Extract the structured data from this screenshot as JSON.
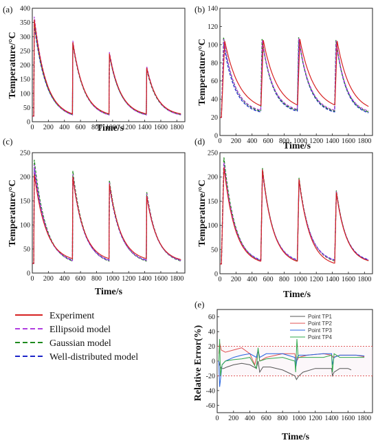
{
  "colors": {
    "Experiment": "#d62020",
    "Ellipsoid model": "#b03ce0",
    "Gaussian model": "#1d8a1d",
    "Well-distributed model": "#1a23c8",
    "Point TP1": "#555555",
    "Point TP2": "#e05050",
    "Point TP3": "#2060e0",
    "Point TP4": "#2ea84a",
    "bound": "#d62020"
  },
  "legend": {
    "position": "bottom-left",
    "entries": [
      {
        "label": "Experiment",
        "style": "solid"
      },
      {
        "label": "Ellipsoid model",
        "style": "dashed"
      },
      {
        "label": "Gaussian model",
        "style": "dashed"
      },
      {
        "label": "Well-distributed model",
        "style": "dashed"
      }
    ]
  },
  "chart_data": [
    {
      "panel": "(a)",
      "type": "line",
      "xlabel": "Time/s",
      "ylabel": "Temperature/°C",
      "xlim": [
        0,
        1900
      ],
      "ylim": [
        0,
        400
      ],
      "xticks": [
        0,
        200,
        400,
        600,
        800,
        1000,
        1200,
        1400,
        1600,
        1800
      ],
      "yticks": [
        0,
        50,
        100,
        150,
        200,
        250,
        300,
        350,
        400
      ],
      "pulse_times": [
        20,
        500,
        955,
        1420
      ],
      "end_time": 1850,
      "base": 20,
      "series": [
        {
          "name": "Experiment",
          "peaks": [
            360,
            280,
            240,
            190
          ],
          "troughs": [
            28,
            28,
            28,
            28
          ],
          "lag": 0
        },
        {
          "name": "Ellipsoid model",
          "peaks": [
            370,
            285,
            245,
            195
          ],
          "troughs": [
            24,
            24,
            24,
            24
          ],
          "lag": 0
        },
        {
          "name": "Gaussian model",
          "peaks": [
            350,
            278,
            238,
            188
          ],
          "troughs": [
            25,
            25,
            25,
            25
          ],
          "lag": 0
        },
        {
          "name": "Well-distributed model",
          "peaks": [
            340,
            275,
            235,
            185
          ],
          "troughs": [
            26,
            26,
            26,
            26
          ],
          "lag": 0
        }
      ]
    },
    {
      "panel": "(b)",
      "type": "line",
      "xlabel": "Time/s",
      "ylabel": "Temperature/°C",
      "xlim": [
        0,
        1900
      ],
      "ylim": [
        0,
        140
      ],
      "xticks": [
        0,
        200,
        400,
        600,
        800,
        1000,
        1200,
        1400,
        1600,
        1800
      ],
      "yticks": [
        0,
        20,
        40,
        60,
        80,
        100,
        120,
        140
      ],
      "pulse_times": [
        20,
        500,
        955,
        1420
      ],
      "end_time": 1850,
      "base": 20,
      "series": [
        {
          "name": "Experiment",
          "peaks": [
            104,
            105,
            106,
            104
          ],
          "troughs": [
            33,
            34,
            34,
            32
          ],
          "lag": 40
        },
        {
          "name": "Ellipsoid model",
          "peaks": [
            106,
            105,
            107,
            104
          ],
          "troughs": [
            28,
            29,
            28,
            27
          ],
          "lag": 28
        },
        {
          "name": "Gaussian model",
          "peaks": [
            108,
            106,
            108,
            105
          ],
          "troughs": [
            27,
            28,
            27,
            26
          ],
          "lag": 25
        },
        {
          "name": "Well-distributed model",
          "peaks": [
            100,
            104,
            106,
            103
          ],
          "troughs": [
            26,
            27,
            26,
            25
          ],
          "lag": 28
        }
      ]
    },
    {
      "panel": "(c)",
      "type": "line",
      "xlabel": "Time/s",
      "ylabel": "Temperature/°C",
      "xlim": [
        0,
        1900
      ],
      "ylim": [
        0,
        250
      ],
      "xticks": [
        0,
        200,
        400,
        600,
        800,
        1000,
        1200,
        1400,
        1600,
        1800
      ],
      "yticks": [
        0,
        50,
        100,
        150,
        200,
        250
      ],
      "pulse_times": [
        20,
        500,
        955,
        1420
      ],
      "end_time": 1850,
      "base": 20,
      "series": [
        {
          "name": "Experiment",
          "peaks": [
            205,
            200,
            185,
            160
          ],
          "troughs": [
            30,
            30,
            30,
            28
          ],
          "lag": 0
        },
        {
          "name": "Ellipsoid model",
          "peaks": [
            225,
            205,
            188,
            165
          ],
          "troughs": [
            26,
            26,
            26,
            26
          ],
          "lag": 0
        },
        {
          "name": "Gaussian model",
          "peaks": [
            235,
            212,
            192,
            168
          ],
          "troughs": [
            25,
            25,
            25,
            25
          ],
          "lag": 0
        },
        {
          "name": "Well-distributed model",
          "peaks": [
            215,
            200,
            182,
            160
          ],
          "troughs": [
            27,
            27,
            27,
            27
          ],
          "lag": 0
        }
      ]
    },
    {
      "panel": "(d)",
      "type": "line",
      "xlabel": "Time/s",
      "ylabel": "Temperature/°C",
      "xlim": [
        0,
        1900
      ],
      "ylim": [
        0,
        250
      ],
      "xticks": [
        0,
        200,
        400,
        600,
        800,
        1000,
        1200,
        1400,
        1600,
        1800
      ],
      "yticks": [
        0,
        50,
        100,
        150,
        200,
        250
      ],
      "pulse_times": [
        20,
        500,
        955,
        1420
      ],
      "end_time": 1850,
      "base": 20,
      "series": [
        {
          "name": "Experiment",
          "peaks": [
            220,
            215,
            195,
            168
          ],
          "troughs": [
            26,
            26,
            22,
            27
          ],
          "lag": 30
        },
        {
          "name": "Ellipsoid model",
          "peaks": [
            230,
            215,
            195,
            170
          ],
          "troughs": [
            28,
            28,
            28,
            28
          ],
          "lag": 30
        },
        {
          "name": "Gaussian model",
          "peaks": [
            240,
            218,
            198,
            172
          ],
          "troughs": [
            27,
            27,
            27,
            27
          ],
          "lag": 30
        },
        {
          "name": "Well-distributed model",
          "peaks": [
            225,
            212,
            193,
            168
          ],
          "troughs": [
            29,
            29,
            29,
            29
          ],
          "lag": 30
        }
      ]
    },
    {
      "panel": "(e)",
      "type": "line",
      "xlabel": "Time/s",
      "ylabel": "Relative Error(%)",
      "xlim": [
        0,
        1900
      ],
      "ylim": [
        -70,
        70
      ],
      "xticks": [
        0,
        200,
        400,
        600,
        800,
        1000,
        1200,
        1400,
        1600,
        1800
      ],
      "yticks": [
        -60,
        -40,
        -20,
        0,
        20,
        40,
        60
      ],
      "bounds": [
        20,
        -20
      ],
      "legend_position": "top-right",
      "series": [
        {
          "name": "Point TP1",
          "x": [
            20,
            30,
            50,
            80,
            120,
            200,
            300,
            400,
            480,
            500,
            520,
            560,
            650,
            800,
            950,
            970,
            1000,
            1050,
            1200,
            1400,
            1410,
            1430,
            1500,
            1600,
            1640
          ],
          "y": [
            0,
            -5,
            -10,
            -10,
            -8,
            -5,
            -3,
            -5,
            -10,
            0,
            -15,
            -8,
            -8,
            -12,
            -20,
            -25,
            -20,
            -15,
            -10,
            -10,
            -20,
            -15,
            -10,
            -10,
            -12
          ]
        },
        {
          "name": "Point TP2",
          "x": [
            20,
            30,
            50,
            100,
            200,
            300,
            400,
            460,
            500,
            520,
            600,
            800,
            950,
            970,
            1000,
            1100,
            1300,
            1400,
            1420,
            1500,
            1700,
            1800
          ],
          "y": [
            10,
            25,
            15,
            12,
            15,
            18,
            10,
            -5,
            15,
            0,
            5,
            10,
            10,
            0,
            5,
            8,
            10,
            8,
            5,
            8,
            8,
            6
          ]
        },
        {
          "name": "Point TP3",
          "x": [
            20,
            30,
            40,
            60,
            100,
            200,
            300,
            400,
            480,
            500,
            520,
            600,
            800,
            950,
            960,
            980,
            1000,
            1100,
            1300,
            1400,
            1410,
            1430,
            1500,
            1700,
            1800
          ],
          "y": [
            0,
            -35,
            -25,
            -5,
            0,
            5,
            8,
            10,
            5,
            15,
            5,
            10,
            10,
            5,
            -10,
            5,
            8,
            8,
            10,
            10,
            -5,
            5,
            8,
            8,
            7
          ]
        },
        {
          "name": "Point TP4",
          "x": [
            20,
            30,
            40,
            60,
            100,
            200,
            300,
            400,
            480,
            500,
            520,
            600,
            800,
            950,
            960,
            975,
            990,
            1100,
            1300,
            1400,
            1410,
            1430,
            1500,
            1700,
            1800
          ],
          "y": [
            0,
            30,
            -20,
            -5,
            0,
            2,
            3,
            5,
            -10,
            18,
            0,
            3,
            5,
            0,
            -15,
            30,
            5,
            5,
            5,
            8,
            -15,
            10,
            5,
            5,
            5
          ]
        }
      ]
    }
  ]
}
